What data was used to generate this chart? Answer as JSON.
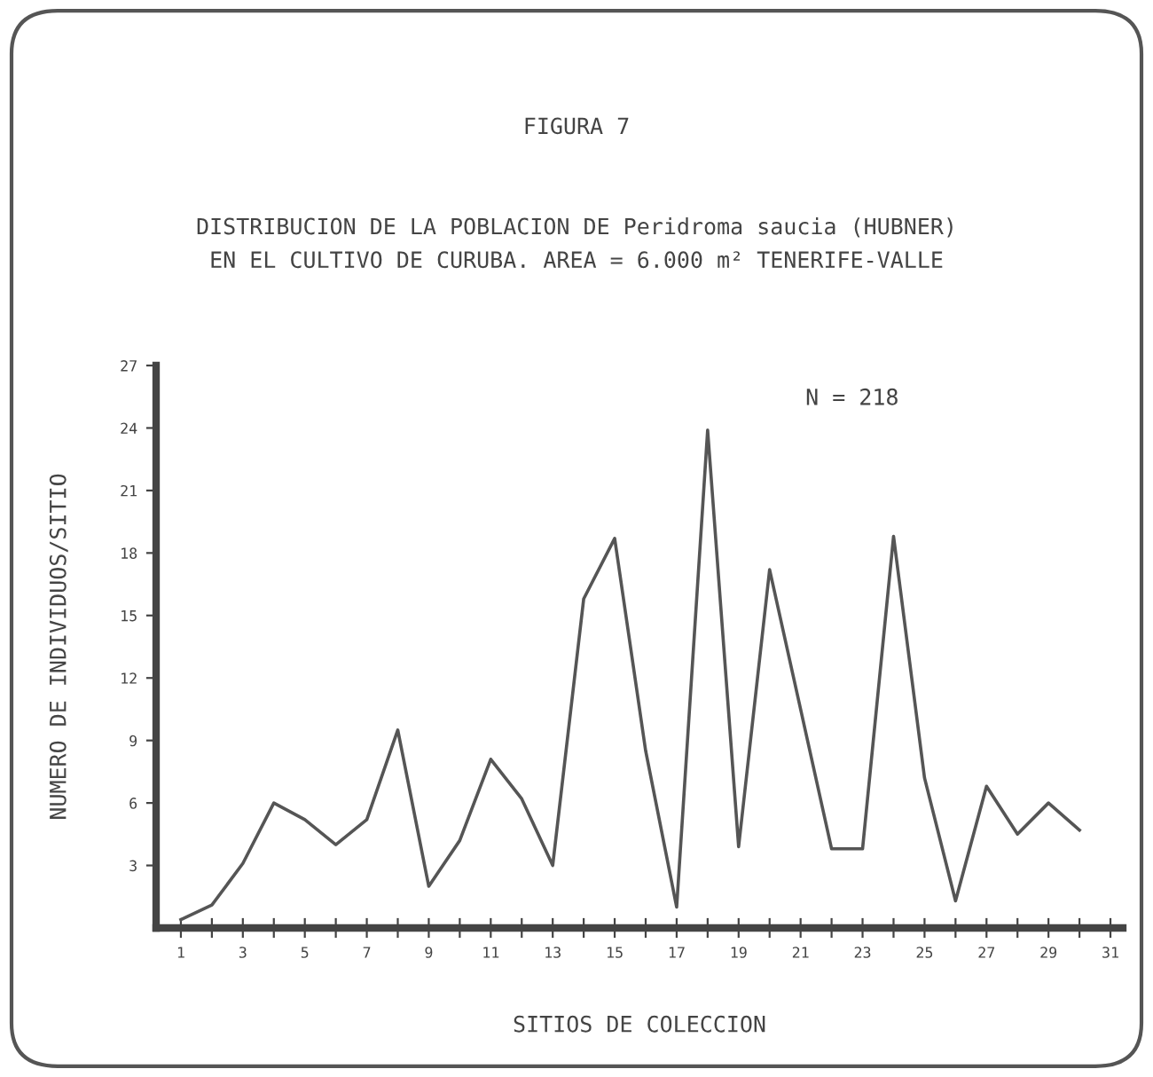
{
  "chart_data": {
    "type": "line",
    "title": "FIGURA 7",
    "subtitle": "DISTRIBUCION DE LA POBLACION DE Peridroma saucia (HUBNER)\nEN EL CULTIVO DE CURUBA. AREA = 6.000 m² TENERIFE-VALLE",
    "xlabel": "SITIOS DE COLECCION",
    "ylabel": "NUMERO DE INDIVIDUOS/SITIO",
    "annotations": [
      "N = 218"
    ],
    "x": [
      1,
      2,
      3,
      4,
      5,
      6,
      7,
      8,
      9,
      10,
      11,
      12,
      13,
      14,
      15,
      16,
      17,
      18,
      19,
      20,
      21,
      22,
      23,
      24,
      25,
      26,
      27,
      28,
      29,
      30
    ],
    "series": [
      {
        "color": "#555555",
        "values": [
          0.4,
          1.1,
          3.1,
          6.0,
          5.2,
          4.0,
          5.2,
          9.5,
          2.0,
          4.2,
          8.1,
          6.2,
          3.0,
          15.8,
          18.7,
          8.5,
          1.0,
          23.9,
          3.9,
          17.2,
          10.5,
          3.8,
          3.8,
          18.8,
          7.2,
          1.3,
          6.8,
          4.5,
          6.0,
          4.7
        ]
      }
    ],
    "xlim": [
      0.2,
      31.4
    ],
    "ylim": [
      0,
      27
    ],
    "xticks": [
      1,
      {
        "value": 2,
        "label": null
      },
      3,
      {
        "value": 4,
        "label": null
      },
      5,
      {
        "value": 6,
        "label": null
      },
      7,
      {
        "value": 8,
        "label": null
      },
      9,
      {
        "value": 10,
        "label": null
      },
      11,
      {
        "value": 12,
        "label": null
      },
      13,
      {
        "value": 14,
        "label": null
      },
      15,
      {
        "value": 16,
        "label": null
      },
      17,
      {
        "value": 18,
        "label": null
      },
      19,
      {
        "value": 20,
        "label": null
      },
      21,
      {
        "value": 22,
        "label": null
      },
      23,
      {
        "value": 24,
        "label": null
      },
      25,
      {
        "value": 26,
        "label": null
      },
      27,
      {
        "value": 28,
        "label": null
      },
      29,
      {
        "value": 30,
        "label": null
      },
      31
    ],
    "yticks": [
      3,
      6,
      9,
      12,
      15,
      18,
      21,
      24,
      27
    ],
    "grid": false,
    "legend": false,
    "marker": "none",
    "line_style": "solid"
  }
}
